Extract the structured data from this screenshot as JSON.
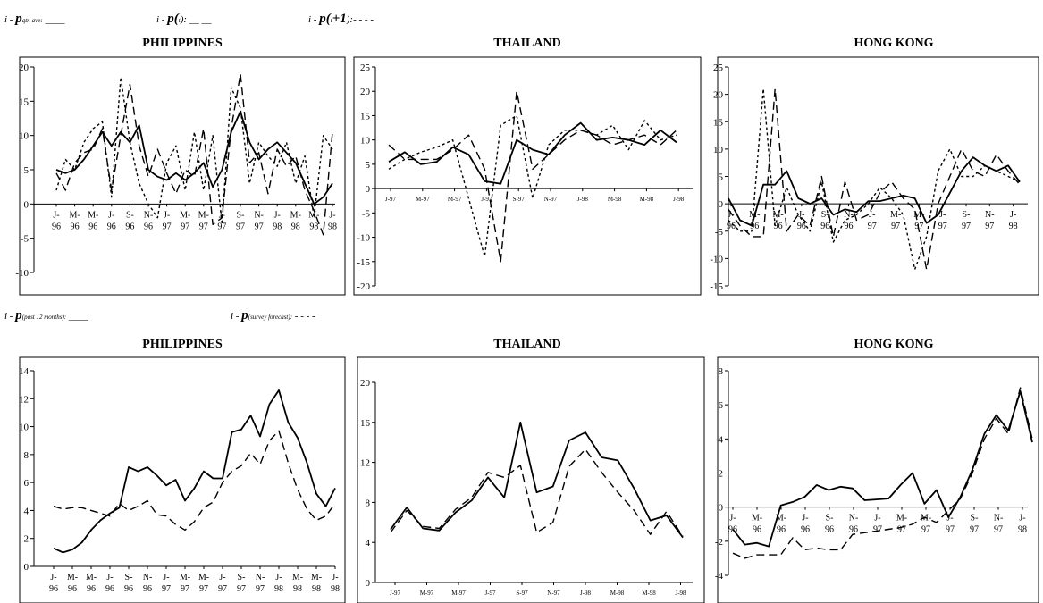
{
  "legend_top": {
    "item1": {
      "prefix": "i - ",
      "symbol": "p",
      "sub": "qtr. ave:",
      "style": " ____"
    },
    "item2": {
      "prefix": "i - ",
      "symbol": "p(",
      "sub": "t",
      "style": "): __ __"
    },
    "item3": {
      "prefix": "i - ",
      "symbol": "p(",
      "sub": "t",
      "plus": "+1",
      "style": "):- - - -"
    }
  },
  "legend_bottom": {
    "item1": {
      "prefix": "i - ",
      "symbol": "p",
      "sub": "(past 12 months):",
      "style": " ____"
    },
    "item2": {
      "prefix": "i - ",
      "symbol": "p",
      "sub": "(survey forecast):",
      "style": " - - - -"
    }
  },
  "chart_data": [
    {
      "id": "top-philippines",
      "type": "line",
      "title": "PHILIPPINES",
      "ylim": [
        -10,
        20
      ],
      "yticks": [
        -10,
        -5,
        0,
        5,
        10,
        15,
        20
      ],
      "ticklabels": [
        [
          "J-",
          "96"
        ],
        [
          "M-",
          "96"
        ],
        [
          "M-",
          "96"
        ],
        [
          "J-",
          "96"
        ],
        [
          "S-",
          "96"
        ],
        [
          "N-",
          "96"
        ],
        [
          "J-",
          "97"
        ],
        [
          "M-",
          "97"
        ],
        [
          "M-",
          "97"
        ],
        [
          "J-",
          "97"
        ],
        [
          "S-",
          "97"
        ],
        [
          "N-",
          "97"
        ],
        [
          "J-",
          "98"
        ],
        [
          "M-",
          "98"
        ],
        [
          "M-",
          "98"
        ],
        [
          "J-",
          "98"
        ]
      ],
      "n": 31,
      "series": [
        {
          "style": "solid",
          "values": [
            5,
            4.5,
            5,
            6.5,
            8.5,
            10.5,
            8.5,
            10.5,
            9,
            11.5,
            5,
            4,
            3.5,
            4.5,
            3.5,
            4.5,
            6,
            2.5,
            5,
            10.5,
            13.5,
            9,
            6.5,
            8,
            9,
            7.5,
            6,
            3,
            0,
            1,
            3
          ]
        },
        {
          "style": "dash",
          "values": [
            4.5,
            2,
            6,
            7.5,
            8,
            11,
            2,
            10,
            17.5,
            8.5,
            4,
            8,
            4.5,
            1.5,
            5,
            4,
            11,
            -3,
            -2,
            11,
            19,
            6,
            7.5,
            1.5,
            8,
            5.5,
            7,
            2,
            -1,
            -4.5,
            10.5
          ]
        },
        {
          "style": "dot",
          "values": [
            2,
            6.5,
            5,
            9,
            11,
            12,
            1,
            18.5,
            9,
            3,
            0,
            -2,
            6,
            8.5,
            2,
            10.5,
            2,
            10,
            -3,
            17,
            14,
            3,
            9,
            7,
            5.5,
            9,
            3,
            7,
            -2,
            10,
            8
          ]
        }
      ]
    },
    {
      "id": "top-thailand",
      "type": "line",
      "title": "THAILAND",
      "ylim": [
        -20,
        25
      ],
      "yticks": [
        -20,
        -15,
        -10,
        -5,
        0,
        5,
        10,
        15,
        20,
        25
      ],
      "ticklabels": [
        [
          "J-97"
        ],
        [
          "M-97"
        ],
        [
          "M-97"
        ],
        [
          "J-97"
        ],
        [
          "S-97"
        ],
        [
          "N-97"
        ],
        [
          "J-98"
        ],
        [
          "M-98"
        ],
        [
          "M-98"
        ],
        [
          "J-98"
        ]
      ],
      "n": 19,
      "series": [
        {
          "style": "solid",
          "values": [
            5.5,
            7.5,
            5,
            5.5,
            8.5,
            7,
            1.5,
            1,
            10,
            8,
            7,
            11,
            13.5,
            10,
            10.5,
            10,
            9,
            12,
            9.5
          ]
        },
        {
          "style": "dash",
          "values": [
            9,
            6,
            6,
            6,
            8,
            11,
            4,
            -15,
            20,
            4,
            7,
            10,
            12,
            11,
            9,
            10,
            11,
            9,
            12
          ]
        },
        {
          "style": "dot",
          "values": [
            4,
            6,
            7.5,
            8.5,
            10,
            -2,
            -14,
            13,
            15,
            -2,
            9,
            12,
            12,
            11,
            13,
            8,
            14,
            10,
            11
          ]
        }
      ]
    },
    {
      "id": "top-hongkong",
      "type": "line",
      "title": "HONG KONG",
      "ylim": [
        -15,
        25
      ],
      "yticks": [
        -15,
        -10,
        -5,
        0,
        5,
        10,
        15,
        20,
        25
      ],
      "ticklabels": [
        [
          "J-",
          "96"
        ],
        [
          "M-",
          "96"
        ],
        [
          "M-",
          "96"
        ],
        [
          "J-",
          "96"
        ],
        [
          "S-",
          "96"
        ],
        [
          "N-",
          "96"
        ],
        [
          "J-",
          "97"
        ],
        [
          "M-",
          "97"
        ],
        [
          "M-",
          "97"
        ],
        [
          "J-",
          "97"
        ],
        [
          "S-",
          "97"
        ],
        [
          "N-",
          "97"
        ],
        [
          "J-",
          "98"
        ]
      ],
      "n": 26,
      "series": [
        {
          "style": "solid",
          "values": [
            1,
            -3,
            -4,
            3.5,
            3.5,
            6,
            1,
            0,
            1,
            -2,
            -1,
            -1.5,
            0.5,
            0.5,
            1,
            1.5,
            1,
            -3.5,
            -2,
            2,
            6,
            8.5,
            7,
            6,
            7,
            4
          ]
        },
        {
          "style": "dash",
          "values": [
            -1,
            -4,
            -6,
            -6,
            21,
            -5,
            -2,
            -4,
            5,
            -6,
            4,
            -3,
            -2,
            2,
            4,
            1,
            -1,
            -12,
            0,
            5,
            10,
            6,
            5,
            9,
            6,
            3.5
          ]
        },
        {
          "style": "dot",
          "values": [
            -3,
            -5,
            -5,
            21,
            -4,
            3,
            -2,
            -5,
            4,
            -7,
            -3,
            -2,
            0,
            3,
            1,
            -2,
            -12,
            -6,
            6,
            10,
            5,
            5,
            7,
            6,
            5,
            4
          ]
        }
      ]
    },
    {
      "id": "bottom-philippines",
      "type": "line",
      "title": "PHILIPPINES",
      "ylim": [
        0,
        14
      ],
      "yticks": [
        0,
        2,
        4,
        6,
        8,
        10,
        12,
        14
      ],
      "ticklabels": [
        [
          "J-",
          "96"
        ],
        [
          "M-",
          "96"
        ],
        [
          "M-",
          "96"
        ],
        [
          "J-",
          "96"
        ],
        [
          "S-",
          "96"
        ],
        [
          "N-",
          "96"
        ],
        [
          "J-",
          "97"
        ],
        [
          "M-",
          "97"
        ],
        [
          "M-",
          "97"
        ],
        [
          "J-",
          "97"
        ],
        [
          "S-",
          "97"
        ],
        [
          "N-",
          "97"
        ],
        [
          "J-",
          "98"
        ],
        [
          "M-",
          "98"
        ],
        [
          "M-",
          "98"
        ],
        [
          "J-",
          "98"
        ]
      ],
      "n": 31,
      "series": [
        {
          "style": "solid",
          "values": [
            1.3,
            1,
            1.2,
            1.7,
            2.6,
            3.3,
            3.8,
            4.2,
            7.1,
            6.8,
            7.1,
            6.5,
            5.8,
            6.2,
            4.7,
            5.6,
            6.8,
            6.3,
            6.3,
            9.6,
            9.8,
            10.8,
            9.3,
            11.6,
            12.6,
            10.3,
            9.2,
            7.4,
            5.2,
            4.3,
            5.6
          ]
        },
        {
          "style": "dash",
          "values": [
            4.3,
            4.1,
            4.2,
            4.2,
            4,
            3.8,
            3.6,
            4.5,
            4,
            4.3,
            4.7,
            3.7,
            3.6,
            3,
            2.6,
            3.2,
            4.2,
            4.6,
            6,
            6.8,
            7.2,
            8.1,
            7.3,
            9,
            9.7,
            7.4,
            5.5,
            4.1,
            3.3,
            3.6,
            4.5
          ]
        }
      ]
    },
    {
      "id": "bottom-thailand",
      "type": "line",
      "title": "THAILAND",
      "ylim": [
        0,
        20
      ],
      "yticks": [
        0,
        4,
        8,
        12,
        16,
        20
      ],
      "ticklabels": [
        [
          "J-97"
        ],
        [
          "M-97"
        ],
        [
          "M-97"
        ],
        [
          "J-97"
        ],
        [
          "S-97"
        ],
        [
          "N-97"
        ],
        [
          "J-98"
        ],
        [
          "M-98"
        ],
        [
          "M-98"
        ],
        [
          "J-98"
        ]
      ],
      "n": 19,
      "series": [
        {
          "style": "solid",
          "values": [
            5.3,
            7.5,
            5.4,
            5.2,
            7,
            8.2,
            10.5,
            8.5,
            16,
            9,
            9.6,
            14.2,
            15,
            12.5,
            12.2,
            9.4,
            6.2,
            6.7,
            4.5
          ]
        },
        {
          "style": "dash",
          "values": [
            5,
            7.2,
            5.6,
            5.4,
            7.3,
            8.5,
            11,
            10.5,
            11.7,
            5,
            6,
            11.6,
            13.3,
            11,
            9,
            7.2,
            4.8,
            7.1,
            4.6
          ]
        }
      ]
    },
    {
      "id": "bottom-hongkong",
      "type": "line",
      "title": "HONG KONG",
      "ylim": [
        -4,
        8
      ],
      "yticks": [
        -4,
        -2,
        0,
        2,
        4,
        6,
        8
      ],
      "ticklabels": [
        [
          "J-",
          "96"
        ],
        [
          "M-",
          "96"
        ],
        [
          "M-",
          "96"
        ],
        [
          "J-",
          "96"
        ],
        [
          "S-",
          "96"
        ],
        [
          "N-",
          "96"
        ],
        [
          "J-",
          "97"
        ],
        [
          "M-",
          "97"
        ],
        [
          "M-",
          "97"
        ],
        [
          "J-",
          "97"
        ],
        [
          "S-",
          "97"
        ],
        [
          "N-",
          "97"
        ],
        [
          "J-",
          "98"
        ]
      ],
      "n": 26,
      "series": [
        {
          "style": "solid",
          "values": [
            -1.3,
            -2.2,
            -2.1,
            -2.3,
            0.1,
            0.3,
            0.6,
            1.3,
            1,
            1.2,
            1.1,
            0.4,
            0.45,
            0.5,
            1.3,
            2,
            0.2,
            1,
            -0.6,
            0.6,
            2.2,
            4.3,
            5.4,
            4.5,
            6.8,
            3.8
          ]
        },
        {
          "style": "dash",
          "values": [
            -2.7,
            -3,
            -2.8,
            -2.8,
            -2.8,
            -1.8,
            -2.5,
            -2.4,
            -2.5,
            -2.5,
            -1.6,
            -1.5,
            -1.4,
            -1.3,
            -1.2,
            -1,
            -0.6,
            -0.9,
            -0.2,
            0.5,
            2,
            4,
            5.2,
            4.3,
            7,
            4
          ]
        }
      ]
    }
  ]
}
